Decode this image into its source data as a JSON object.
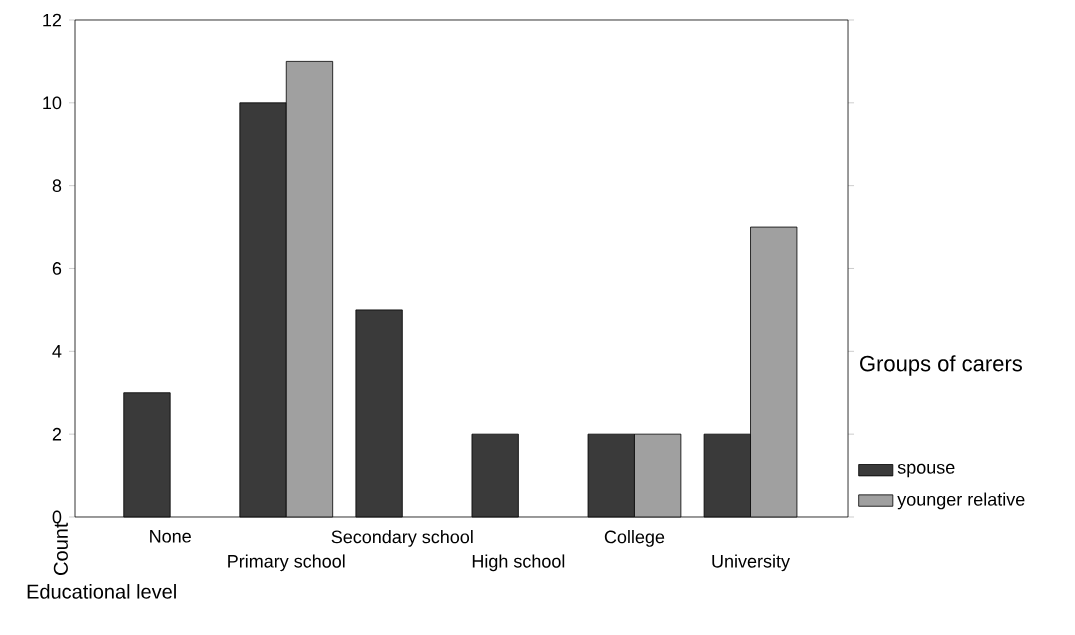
{
  "chart_data": {
    "type": "bar",
    "xlabel": "Educational level",
    "ylabel": "Count",
    "legend_title": "Groups of carers",
    "categories": [
      "None",
      "Primary school",
      "Secondary school",
      "High school",
      "College",
      "University"
    ],
    "series": [
      {
        "name": "spouse",
        "color": "#3a3a3a",
        "values": [
          3,
          10,
          5,
          2,
          2,
          2
        ]
      },
      {
        "name": "younger relative",
        "color": "#a0a0a0",
        "values": [
          0,
          11,
          0,
          0,
          2,
          7
        ]
      }
    ],
    "ylim": [
      0,
      12
    ],
    "yticks": [
      0,
      2,
      4,
      6,
      8,
      10,
      12
    ],
    "grid": false,
    "legend": "right"
  }
}
